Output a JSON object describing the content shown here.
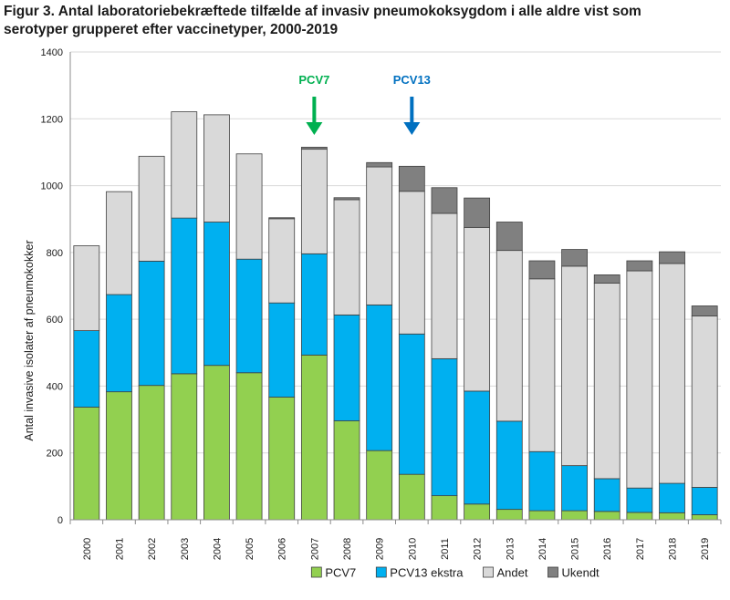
{
  "figure": {
    "title_line1": "Figur 3. Antal laboratoriebekræftede tilfælde af invasiv pneumokoksygdom i alle aldre vist som",
    "title_line2": "serotyper grupperet efter vaccinetyper, 2000-2019"
  },
  "chart_data": {
    "type": "bar",
    "stacked": true,
    "title": "Figur 3. Antal laboratoriebekræftede tilfælde af invasiv pneumokoksygdom i alle aldre vist som serotyper grupperet efter vaccinetyper, 2000-2019",
    "xlabel": "",
    "ylabel": "Antal invasive isolater af pneumokokker",
    "ylim": [
      0,
      1400
    ],
    "yticks": [
      0,
      200,
      400,
      600,
      800,
      1000,
      1200,
      1400
    ],
    "grid": true,
    "legend_position": "bottom",
    "categories": [
      "2000",
      "2001",
      "2002",
      "2003",
      "2004",
      "2005",
      "2006",
      "2007",
      "2008",
      "2009",
      "2010",
      "2011",
      "2012",
      "2013",
      "2014",
      "2015",
      "2016",
      "2017",
      "2018",
      "2019"
    ],
    "series": [
      {
        "name": "PCV7",
        "color": "#92d050",
        "values": [
          337,
          383,
          402,
          437,
          462,
          440,
          367,
          493,
          296,
          207,
          136,
          72,
          47,
          31,
          27,
          27,
          25,
          22,
          21,
          15
        ]
      },
      {
        "name": "PCV13 ekstra",
        "color": "#00b0f0",
        "values": [
          229,
          291,
          372,
          466,
          429,
          340,
          282,
          303,
          317,
          436,
          420,
          410,
          338,
          264,
          177,
          135,
          98,
          73,
          88,
          82
        ]
      },
      {
        "name": "Andet",
        "color": "#d9d9d9",
        "values": [
          254,
          308,
          314,
          318,
          321,
          315,
          252,
          313,
          345,
          413,
          427,
          435,
          490,
          511,
          517,
          597,
          585,
          650,
          658,
          513
        ]
      },
      {
        "name": "Ukendt",
        "color": "#808080",
        "values": [
          0,
          0,
          0,
          0,
          0,
          0,
          3,
          6,
          6,
          13,
          75,
          77,
          88,
          85,
          54,
          50,
          25,
          30,
          35,
          30
        ]
      }
    ],
    "annotations": [
      {
        "text": "PCV7",
        "at_category": "2007",
        "color": "#00b050"
      },
      {
        "text": "PCV13",
        "at_category": "2010",
        "color": "#0070c0"
      }
    ]
  }
}
